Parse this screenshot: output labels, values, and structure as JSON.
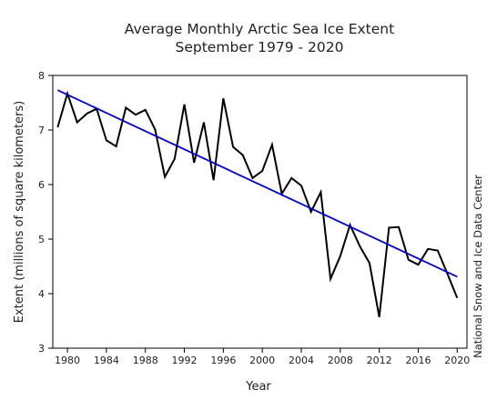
{
  "chart_data": {
    "type": "line",
    "title": "Average Monthly Arctic Sea Ice Extent",
    "subtitle": "September 1979 - 2020",
    "xlabel": "Year",
    "ylabel": "Extent (millions of square kilometers)",
    "credit": "National Snow and Ice Data Center",
    "xlim": [
      1978.5,
      2021
    ],
    "ylim": [
      3,
      8
    ],
    "x_ticks": [
      1980,
      1984,
      1988,
      1992,
      1996,
      2000,
      2004,
      2008,
      2012,
      2016,
      2020
    ],
    "y_ticks": [
      3,
      4,
      5,
      6,
      7,
      8
    ],
    "grid": false,
    "series": [
      {
        "color": "#000000",
        "x": [
          1979,
          1980,
          1981,
          1982,
          1983,
          1984,
          1985,
          1986,
          1987,
          1988,
          1989,
          1990,
          1991,
          1992,
          1993,
          1994,
          1995,
          1996,
          1997,
          1998,
          1999,
          2000,
          2001,
          2002,
          2003,
          2004,
          2005,
          2006,
          2007,
          2008,
          2009,
          2010,
          2011,
          2012,
          2013,
          2014,
          2015,
          2016,
          2017,
          2018,
          2019,
          2020
        ],
        "values": [
          7.05,
          7.67,
          7.14,
          7.3,
          7.39,
          6.81,
          6.7,
          7.41,
          7.28,
          7.37,
          7.01,
          6.14,
          6.47,
          7.47,
          6.4,
          7.14,
          6.08,
          7.58,
          6.69,
          6.54,
          6.12,
          6.25,
          6.73,
          5.83,
          6.12,
          5.98,
          5.5,
          5.86,
          4.27,
          4.69,
          5.26,
          4.87,
          4.56,
          3.57,
          5.21,
          5.22,
          4.62,
          4.53,
          4.82,
          4.79,
          4.36,
          3.92
        ]
      },
      {
        "color": "#0000cc",
        "x": [
          1979,
          2020
        ],
        "values": [
          7.73,
          4.31
        ]
      }
    ]
  }
}
